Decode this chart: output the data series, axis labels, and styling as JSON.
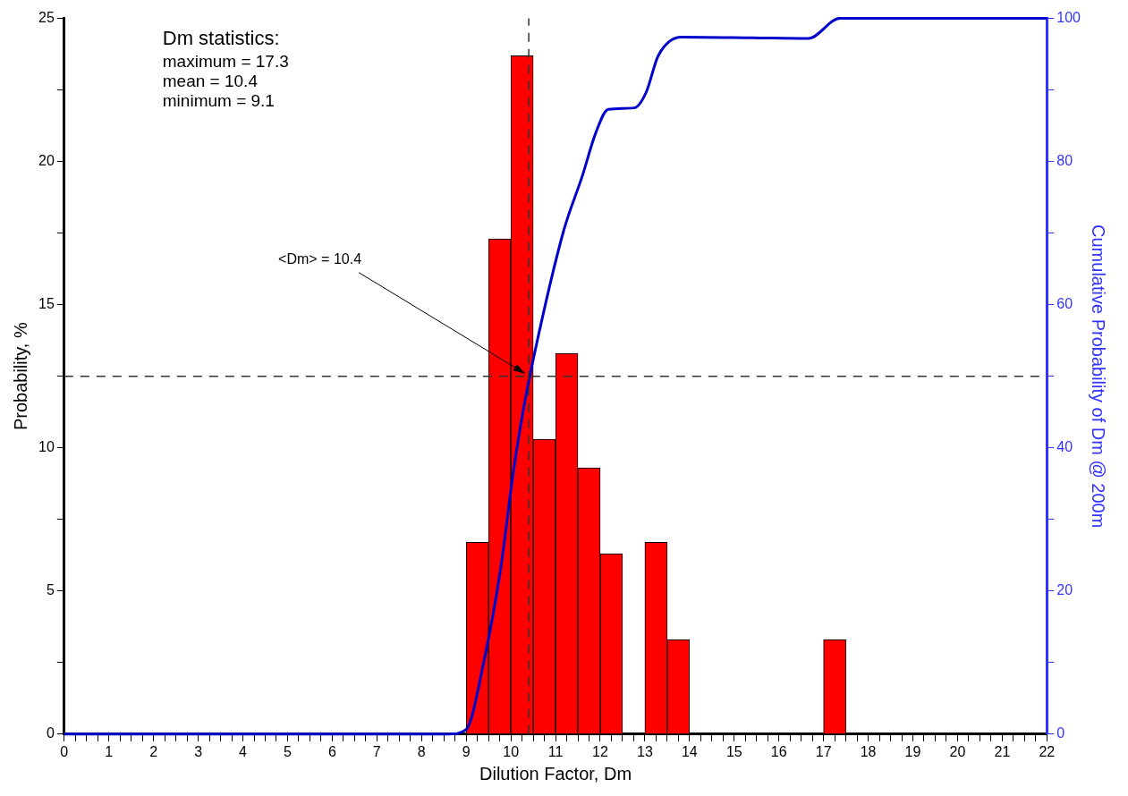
{
  "chart_data": {
    "type": "histogram",
    "xlabel": "Dilution Factor, Dm",
    "ylabel": "Probability, %",
    "y2label": "Cumulative Probability of Dm @ 200m",
    "bins": [
      9,
      9.5,
      10,
      10.5,
      11,
      11.5,
      12,
      12.5,
      13,
      13.5,
      14,
      14.5,
      15,
      15.5,
      16,
      16.5,
      17,
      17.5
    ],
    "values": [
      6.7,
      17.3,
      23.7,
      10.3,
      13.3,
      9.3,
      6.3,
      0,
      6.7,
      3.3,
      0,
      0,
      0,
      0,
      0,
      0,
      3.3
    ],
    "color": "#ff0000",
    "series": [
      {
        "type": "line",
        "axis": "y2",
        "color": "#0000cc",
        "x": [
          0,
          8.6,
          8.99,
          9.41,
          9.78,
          10.05,
          10.27,
          10.54,
          11.18,
          11.6,
          11.9,
          12.18,
          12.76,
          13.03,
          13.3,
          13.82,
          15.4,
          16.66,
          17.36,
          22
        ],
        "values": [
          0,
          0,
          0.6,
          10.6,
          23.5,
          36.4,
          45,
          53.5,
          70.3,
          78,
          84,
          87.3,
          87.5,
          89.7,
          94.8,
          97.4,
          97.3,
          97.2,
          100,
          100
        ]
      }
    ],
    "xlim": [
      0,
      22
    ],
    "xticks": [
      0,
      {
        "value": 0.25,
        "label": null
      },
      {
        "value": 0.5,
        "label": null
      },
      {
        "value": 0.75,
        "label": null
      },
      1,
      {
        "value": 1.25,
        "label": null
      },
      {
        "value": 1.5,
        "label": null
      },
      {
        "value": 1.75,
        "label": null
      },
      2,
      {
        "value": 2.25,
        "label": null
      },
      {
        "value": 2.5,
        "label": null
      },
      {
        "value": 2.75,
        "label": null
      },
      3,
      {
        "value": 3.25,
        "label": null
      },
      {
        "value": 3.5,
        "label": null
      },
      {
        "value": 3.75,
        "label": null
      },
      4,
      {
        "value": 4.25,
        "label": null
      },
      {
        "value": 4.5,
        "label": null
      },
      {
        "value": 4.75,
        "label": null
      },
      5,
      {
        "value": 5.25,
        "label": null
      },
      {
        "value": 5.5,
        "label": null
      },
      {
        "value": 5.75,
        "label": null
      },
      6,
      {
        "value": 6.25,
        "label": null
      },
      {
        "value": 6.5,
        "label": null
      },
      {
        "value": 6.75,
        "label": null
      },
      7,
      {
        "value": 7.25,
        "label": null
      },
      {
        "value": 7.5,
        "label": null
      },
      {
        "value": 7.75,
        "label": null
      },
      8,
      {
        "value": 8.25,
        "label": null
      },
      {
        "value": 8.5,
        "label": null
      },
      {
        "value": 8.75,
        "label": null
      },
      9,
      {
        "value": 9.25,
        "label": null
      },
      {
        "value": 9.5,
        "label": null
      },
      {
        "value": 9.75,
        "label": null
      },
      10,
      {
        "value": 10.25,
        "label": null
      },
      {
        "value": 10.5,
        "label": null
      },
      {
        "value": 10.75,
        "label": null
      },
      11,
      {
        "value": 11.25,
        "label": null
      },
      {
        "value": 11.5,
        "label": null
      },
      {
        "value": 11.75,
        "label": null
      },
      12,
      {
        "value": 12.25,
        "label": null
      },
      {
        "value": 12.5,
        "label": null
      },
      {
        "value": 12.75,
        "label": null
      },
      13,
      {
        "value": 13.25,
        "label": null
      },
      {
        "value": 13.5,
        "label": null
      },
      {
        "value": 13.75,
        "label": null
      },
      14,
      {
        "value": 14.25,
        "label": null
      },
      {
        "value": 14.5,
        "label": null
      },
      {
        "value": 14.75,
        "label": null
      },
      15,
      {
        "value": 15.25,
        "label": null
      },
      {
        "value": 15.5,
        "label": null
      },
      {
        "value": 15.75,
        "label": null
      },
      16,
      {
        "value": 16.25,
        "label": null
      },
      {
        "value": 16.5,
        "label": null
      },
      {
        "value": 16.75,
        "label": null
      },
      17,
      {
        "value": 17.25,
        "label": null
      },
      {
        "value": 17.5,
        "label": null
      },
      {
        "value": 17.75,
        "label": null
      },
      18,
      {
        "value": 18.25,
        "label": null
      },
      {
        "value": 18.5,
        "label": null
      },
      {
        "value": 18.75,
        "label": null
      },
      19,
      {
        "value": 19.25,
        "label": null
      },
      {
        "value": 19.5,
        "label": null
      },
      {
        "value": 19.75,
        "label": null
      },
      20,
      {
        "value": 20.25,
        "label": null
      },
      {
        "value": 20.5,
        "label": null
      },
      {
        "value": 20.75,
        "label": null
      },
      21,
      {
        "value": 21.25,
        "label": null
      },
      {
        "value": 21.5,
        "label": null
      },
      {
        "value": 21.75,
        "label": null
      },
      22
    ],
    "ylim": [
      0,
      25
    ],
    "yticks": [
      0,
      {
        "value": 2.5,
        "label": null
      },
      5,
      {
        "value": 7.5,
        "label": null
      },
      10,
      {
        "value": 12.5,
        "label": null
      },
      15,
      {
        "value": 17.5,
        "label": null
      },
      20,
      {
        "value": 22.5,
        "label": null
      },
      25
    ],
    "y2lim": [
      0,
      100
    ],
    "y2ticks": [
      0,
      {
        "value": 10,
        "label": null
      },
      20,
      {
        "value": 30,
        "label": null
      },
      40,
      {
        "value": 50,
        "label": null
      },
      60,
      {
        "value": 70,
        "label": null
      },
      80,
      {
        "value": 90,
        "label": null
      },
      100
    ],
    "ref_lines": [
      {
        "axis": "y2",
        "value": 50,
        "line_style": "dashed",
        "color": "#333333"
      },
      {
        "axis": "x",
        "value": 10.4,
        "line_style": "dashed",
        "color": "#333333"
      }
    ],
    "annotations": [
      "Dm statistics:",
      "maximum = 17.3",
      "mean = 10.4",
      "minimum = 9.1",
      {
        "text": "<Dm> = 10.4",
        "x": 10.4,
        "y": 12.5
      }
    ],
    "grid": false,
    "legend": false
  }
}
